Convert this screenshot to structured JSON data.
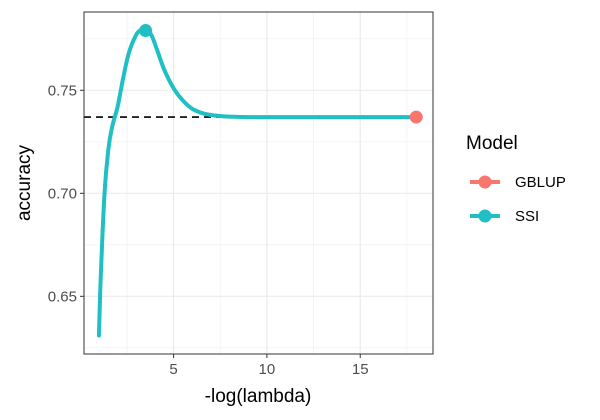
{
  "chart_data": {
    "type": "line",
    "xlabel": "-log(lambda)",
    "ylabel": "accuracy",
    "xlim": [
      0.2,
      18.9
    ],
    "ylim": [
      0.622,
      0.788
    ],
    "x_ticks": [
      5,
      10,
      15
    ],
    "y_ticks": [
      0.65,
      0.7,
      0.75
    ],
    "x_tick_labels": [
      "5",
      "10",
      "15"
    ],
    "y_tick_labels": [
      "0.65",
      "0.70",
      "0.75"
    ],
    "grid": true,
    "legend": {
      "title": "Model",
      "position": "right",
      "entries": [
        {
          "label": "GBLUP",
          "color": "#F8766D"
        },
        {
          "label": "SSI",
          "color": "#1FBFC4"
        }
      ]
    },
    "series": [
      {
        "name": "SSI",
        "color": "#1FBFC4",
        "x": [
          1.0,
          1.1,
          1.3,
          1.5,
          1.7,
          2.0,
          2.3,
          2.6,
          3.0,
          3.3,
          3.5,
          3.8,
          4.1,
          4.5,
          5.0,
          5.5,
          6.0,
          6.5,
          7.0,
          7.5,
          8.0,
          9.0,
          10.0,
          12.0,
          14.0,
          16.0,
          18.0
        ],
        "y": [
          0.631,
          0.66,
          0.7,
          0.721,
          0.732,
          0.742,
          0.756,
          0.768,
          0.777,
          0.7795,
          0.779,
          0.777,
          0.77,
          0.76,
          0.751,
          0.745,
          0.741,
          0.739,
          0.738,
          0.7375,
          0.7372,
          0.737,
          0.737,
          0.737,
          0.737,
          0.737,
          0.737
        ]
      }
    ],
    "points": [
      {
        "series": "SSI",
        "x": 3.5,
        "y": 0.779
      },
      {
        "series": "GBLUP",
        "x": 18.0,
        "y": 0.737
      }
    ],
    "reference_line": {
      "y": 0.737,
      "style": "dashed",
      "color": "#000000",
      "x_from": 0.2,
      "x_to": 18.0
    }
  }
}
